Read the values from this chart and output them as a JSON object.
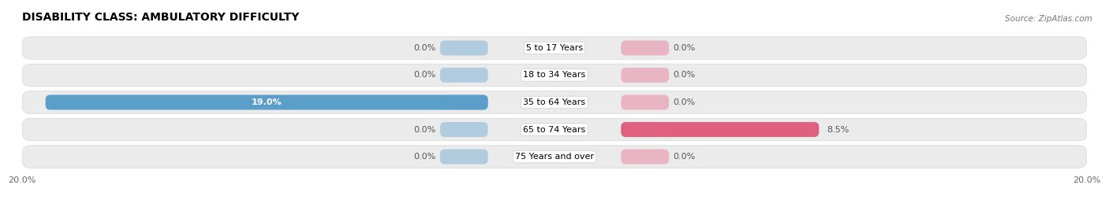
{
  "title": "DISABILITY CLASS: AMBULATORY DIFFICULTY",
  "source": "Source: ZipAtlas.com",
  "categories": [
    "5 to 17 Years",
    "18 to 34 Years",
    "35 to 64 Years",
    "65 to 74 Years",
    "75 Years and over"
  ],
  "male_values": [
    0.0,
    0.0,
    19.0,
    0.0,
    0.0
  ],
  "female_values": [
    0.0,
    0.0,
    0.0,
    8.5,
    0.0
  ],
  "male_color": "#7bafd4",
  "female_color": "#e8809a",
  "male_bar_color": "#5a9ec9",
  "female_bar_color": "#e06080",
  "row_bg_color": "#ebebeb",
  "row_border_color": "#d5d5d5",
  "max_val": 20.0,
  "title_fontsize": 10,
  "label_fontsize": 8,
  "cat_fontsize": 8,
  "tick_fontsize": 8,
  "source_fontsize": 7.5,
  "value_label_white_threshold": 1.0
}
